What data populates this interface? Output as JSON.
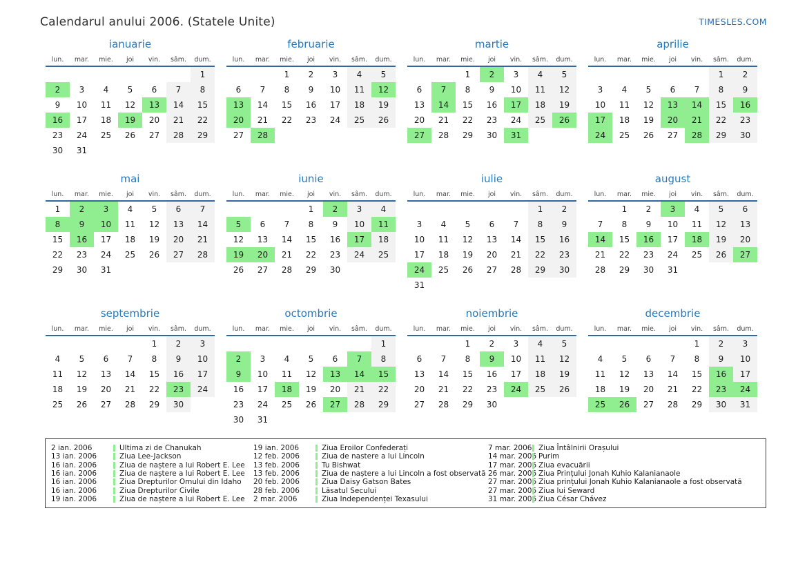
{
  "page": {
    "title": "Calendarul anului 2006. (Statele Unite)",
    "logo": "TIMESLES.COM"
  },
  "colors": {
    "month_title_blue": "#2779BE",
    "header_line_blue": "#33669A",
    "holiday_green": "#90EE90",
    "weekend_gray": "#F2F2F2",
    "logo_blue": "#1B6FBE"
  },
  "weekdays": [
    "lun.",
    "mar.",
    "mie.",
    "joi",
    "vin.",
    "sâm.",
    "dum."
  ],
  "months": [
    {
      "name": "ianuarie",
      "holidays": [
        2,
        13,
        16,
        19
      ],
      "weeks": [
        [
          null,
          null,
          null,
          null,
          null,
          null,
          1
        ],
        [
          2,
          3,
          4,
          5,
          6,
          7,
          8
        ],
        [
          9,
          10,
          11,
          12,
          13,
          14,
          15
        ],
        [
          16,
          17,
          18,
          19,
          20,
          21,
          22
        ],
        [
          23,
          24,
          25,
          26,
          27,
          28,
          29
        ],
        [
          30,
          31,
          null,
          null,
          null,
          null,
          null
        ]
      ]
    },
    {
      "name": "februarie",
      "holidays": [
        12,
        13,
        20,
        28
      ],
      "weeks": [
        [
          null,
          null,
          1,
          2,
          3,
          4,
          5
        ],
        [
          6,
          7,
          8,
          9,
          10,
          11,
          12
        ],
        [
          13,
          14,
          15,
          16,
          17,
          18,
          19
        ],
        [
          20,
          21,
          22,
          23,
          24,
          25,
          26
        ],
        [
          27,
          28,
          null,
          null,
          null,
          null,
          null
        ]
      ]
    },
    {
      "name": "martie",
      "holidays": [
        2,
        7,
        14,
        17,
        26,
        27,
        31
      ],
      "weeks": [
        [
          null,
          null,
          1,
          2,
          3,
          4,
          5
        ],
        [
          6,
          7,
          8,
          9,
          10,
          11,
          12
        ],
        [
          13,
          14,
          15,
          16,
          17,
          18,
          19
        ],
        [
          20,
          21,
          22,
          23,
          24,
          25,
          26
        ],
        [
          27,
          28,
          29,
          30,
          31,
          null,
          null
        ]
      ]
    },
    {
      "name": "aprilie",
      "holidays": [
        13,
        14,
        16,
        17,
        20,
        21,
        24,
        28
      ],
      "weeks": [
        [
          null,
          null,
          null,
          null,
          null,
          1,
          2
        ],
        [
          3,
          4,
          5,
          6,
          7,
          8,
          9
        ],
        [
          10,
          11,
          12,
          13,
          14,
          15,
          16
        ],
        [
          17,
          18,
          19,
          20,
          21,
          22,
          23
        ],
        [
          24,
          25,
          26,
          27,
          28,
          29,
          30
        ]
      ]
    },
    {
      "name": "mai",
      "holidays": [
        2,
        3,
        8,
        9,
        10,
        16
      ],
      "weeks": [
        [
          1,
          2,
          3,
          4,
          5,
          6,
          7
        ],
        [
          8,
          9,
          10,
          11,
          12,
          13,
          14
        ],
        [
          15,
          16,
          17,
          18,
          19,
          20,
          21
        ],
        [
          22,
          23,
          24,
          25,
          26,
          27,
          28
        ],
        [
          29,
          30,
          31,
          null,
          null,
          null,
          null
        ]
      ]
    },
    {
      "name": "iunie",
      "holidays": [
        2,
        5,
        11,
        17,
        19,
        20
      ],
      "weeks": [
        [
          null,
          null,
          null,
          1,
          2,
          3,
          4
        ],
        [
          5,
          6,
          7,
          8,
          9,
          10,
          11
        ],
        [
          12,
          13,
          14,
          15,
          16,
          17,
          18
        ],
        [
          19,
          20,
          21,
          22,
          23,
          24,
          25
        ],
        [
          26,
          27,
          28,
          29,
          30,
          null,
          null
        ]
      ]
    },
    {
      "name": "iulie",
      "holidays": [
        24
      ],
      "weeks": [
        [
          null,
          null,
          null,
          null,
          null,
          1,
          2
        ],
        [
          3,
          4,
          5,
          6,
          7,
          8,
          9
        ],
        [
          10,
          11,
          12,
          13,
          14,
          15,
          16
        ],
        [
          17,
          18,
          19,
          20,
          21,
          22,
          23
        ],
        [
          24,
          25,
          26,
          27,
          28,
          29,
          30
        ],
        [
          31,
          null,
          null,
          null,
          null,
          null,
          null
        ]
      ]
    },
    {
      "name": "august",
      "holidays": [
        3,
        14,
        16,
        18,
        27
      ],
      "weeks": [
        [
          null,
          1,
          2,
          3,
          4,
          5,
          6
        ],
        [
          7,
          8,
          9,
          10,
          11,
          12,
          13
        ],
        [
          14,
          15,
          16,
          17,
          18,
          19,
          20
        ],
        [
          21,
          22,
          23,
          24,
          25,
          26,
          27
        ],
        [
          28,
          29,
          30,
          31,
          null,
          null,
          null
        ]
      ]
    },
    {
      "name": "septembrie",
      "holidays": [
        23
      ],
      "weeks": [
        [
          null,
          null,
          null,
          null,
          1,
          2,
          3
        ],
        [
          4,
          5,
          6,
          7,
          8,
          9,
          10
        ],
        [
          11,
          12,
          13,
          14,
          15,
          16,
          17
        ],
        [
          18,
          19,
          20,
          21,
          22,
          23,
          24
        ],
        [
          25,
          26,
          27,
          28,
          29,
          30,
          null
        ]
      ]
    },
    {
      "name": "octombrie",
      "holidays": [
        2,
        7,
        9,
        13,
        14,
        15,
        18,
        27
      ],
      "weeks": [
        [
          null,
          null,
          null,
          null,
          null,
          null,
          1
        ],
        [
          2,
          3,
          4,
          5,
          6,
          7,
          8
        ],
        [
          9,
          10,
          11,
          12,
          13,
          14,
          15
        ],
        [
          16,
          17,
          18,
          19,
          20,
          21,
          22
        ],
        [
          23,
          24,
          25,
          26,
          27,
          28,
          29
        ],
        [
          30,
          31,
          null,
          null,
          null,
          null,
          null
        ]
      ]
    },
    {
      "name": "noiembrie",
      "holidays": [
        9,
        24
      ],
      "weeks": [
        [
          null,
          null,
          1,
          2,
          3,
          4,
          5
        ],
        [
          6,
          7,
          8,
          9,
          10,
          11,
          12
        ],
        [
          13,
          14,
          15,
          16,
          17,
          18,
          19
        ],
        [
          20,
          21,
          22,
          23,
          24,
          25,
          26
        ],
        [
          27,
          28,
          29,
          30,
          null,
          null,
          null
        ]
      ]
    },
    {
      "name": "decembrie",
      "holidays": [
        16,
        23,
        24,
        25,
        26
      ],
      "weeks": [
        [
          null,
          null,
          null,
          null,
          1,
          2,
          3
        ],
        [
          4,
          5,
          6,
          7,
          8,
          9,
          10
        ],
        [
          11,
          12,
          13,
          14,
          15,
          16,
          17
        ],
        [
          18,
          19,
          20,
          21,
          22,
          23,
          24
        ],
        [
          25,
          26,
          27,
          28,
          29,
          30,
          31
        ]
      ]
    }
  ],
  "legend": {
    "columns": [
      [
        {
          "date": "2 ian. 2006",
          "name": "Ultima zi de Chanukah"
        },
        {
          "date": "13 ian. 2006",
          "name": "Ziua Lee-Jackson"
        },
        {
          "date": "16 ian. 2006",
          "name": "Ziua de naștere a lui Robert E. Lee"
        },
        {
          "date": "16 ian. 2006",
          "name": "Ziua de naștere a lui Robert E. Lee"
        },
        {
          "date": "16 ian. 2006",
          "name": "Ziua Drepturilor Omului din Idaho"
        },
        {
          "date": "16 ian. 2006",
          "name": "Ziua Drepturilor Civile"
        },
        {
          "date": "19 ian. 2006",
          "name": "Ziua de naștere a lui Robert E. Lee"
        }
      ],
      [
        {
          "date": "19 ian. 2006",
          "name": "Ziua Eroilor Confederați"
        },
        {
          "date": "12 feb. 2006",
          "name": "Ziua de nastere a lui Lincoln"
        },
        {
          "date": "13 feb. 2006",
          "name": "Tu Bishwat"
        },
        {
          "date": "13 feb. 2006",
          "name": "Ziua de naștere a lui Lincoln a fost observată"
        },
        {
          "date": "20 feb. 2006",
          "name": "Ziua Daisy Gatson Bates"
        },
        {
          "date": "28 feb. 2006",
          "name": "Lăsatul Secului"
        },
        {
          "date": "2 mar. 2006",
          "name": "Ziua Independenței Texasului"
        }
      ],
      [
        {
          "date": "7 mar. 2006",
          "name": "Ziua Întâlnirii Orașului"
        },
        {
          "date": "14 mar. 2006",
          "name": "Purim"
        },
        {
          "date": "17 mar. 2006",
          "name": "Ziua evacuării"
        },
        {
          "date": "26 mar. 2006",
          "name": "Ziua Prințului Jonah Kuhio Kalanianaole"
        },
        {
          "date": "27 mar. 2006",
          "name": "Ziua prințului Jonah Kuhio Kalanianaole a fost observată"
        },
        {
          "date": "27 mar. 2006",
          "name": "Ziua lui Seward"
        },
        {
          "date": "31 mar. 2006",
          "name": "Ziua César Chávez"
        }
      ]
    ]
  }
}
